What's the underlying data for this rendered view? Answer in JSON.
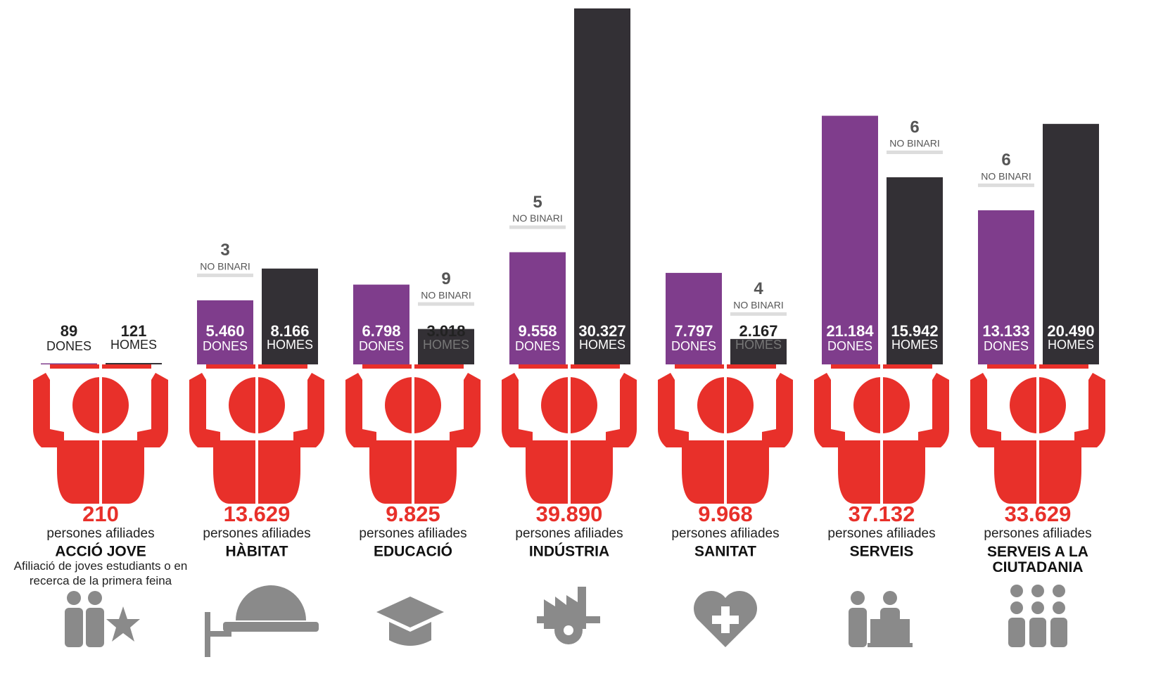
{
  "chart_data": {
    "type": "bar",
    "categories": [
      "ACCIÓ JOVE",
      "HÀBITAT",
      "EDUCACIÓ",
      "INDÚSTRIA",
      "SANITAT",
      "SERVEIS",
      "SERVEIS A LA CIUTADANIA"
    ],
    "series": [
      {
        "name": "DONES",
        "color": "#7f3d8c",
        "values": [
          89,
          5460,
          6798,
          9558,
          7797,
          21184,
          13133
        ],
        "value_labels": [
          "89",
          "5.460",
          "6.798",
          "9.558",
          "7.797",
          "21.184",
          "13.133"
        ]
      },
      {
        "name": "HOMES",
        "color": "#333035",
        "values": [
          121,
          8166,
          3018,
          30327,
          2167,
          15942,
          20490
        ],
        "value_labels": [
          "121",
          "8.166",
          "3.018",
          "30.327",
          "2.167",
          "15.942",
          "20.490"
        ]
      }
    ],
    "no_binari": {
      "label": "NO BINARI",
      "values": [
        null,
        3,
        9,
        5,
        4,
        6,
        6
      ]
    },
    "totals": {
      "label": "persones afiliades",
      "color": "#e8302a",
      "values": [
        210,
        13629,
        9825,
        39890,
        9968,
        37132,
        33629
      ],
      "value_labels": [
        "210",
        "13.629",
        "9.825",
        "39.890",
        "9.968",
        "37.132",
        "33.629"
      ]
    },
    "descriptions": [
      "Afiliació de joves estudiants o en recerca de la primera feina",
      null,
      null,
      null,
      null,
      null,
      null
    ]
  }
}
